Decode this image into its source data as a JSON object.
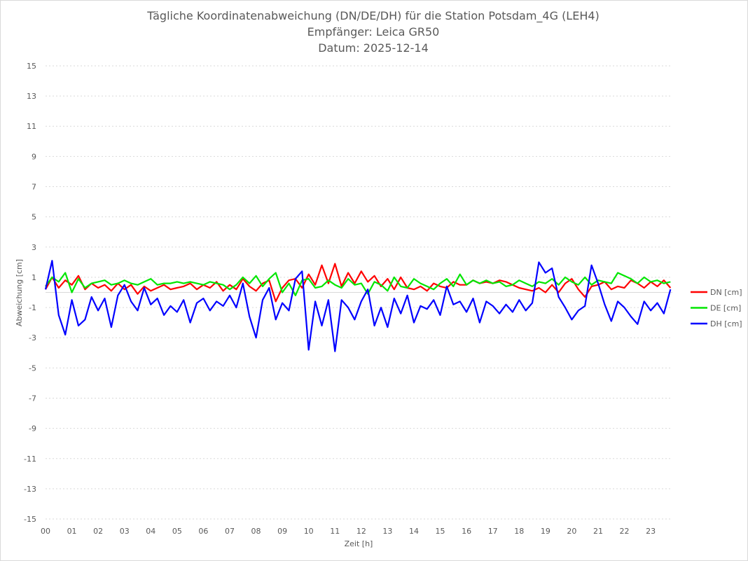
{
  "chart_data": {
    "type": "line",
    "title": [
      "Tägliche Koordinatenabweichung (DN/DE/DH) für die Station Potsdam_4G (LEH4)",
      "Empfänger: Leica GR50",
      "Datum: 2025-12-14"
    ],
    "xlabel": "Zeit [h]",
    "ylabel": "Abweichung [cm]",
    "xlim": [
      0,
      24
    ],
    "ylim": [
      -15,
      15
    ],
    "x_ticks": [
      "00",
      "01",
      "02",
      "03",
      "04",
      "05",
      "06",
      "07",
      "08",
      "09",
      "10",
      "11",
      "12",
      "13",
      "14",
      "15",
      "16",
      "17",
      "18",
      "19",
      "20",
      "21",
      "22",
      "23"
    ],
    "y_ticks": [
      15,
      13,
      11,
      9,
      7,
      5,
      3,
      1,
      -1,
      -3,
      -5,
      -7,
      -9,
      -11,
      -13,
      -15
    ],
    "grid": "horizontal dotted",
    "legend_position": "right",
    "x_step_hours": 0.25,
    "series": [
      {
        "name": "DN [cm]",
        "color": "#ff0000",
        "values": [
          0.2,
          1.0,
          0.3,
          0.8,
          0.5,
          1.1,
          0.2,
          0.6,
          0.3,
          0.5,
          0.1,
          0.6,
          0.2,
          0.5,
          -0.1,
          0.4,
          0.1,
          0.3,
          0.5,
          0.2,
          0.3,
          0.4,
          0.6,
          0.2,
          0.5,
          0.3,
          0.7,
          0.1,
          0.5,
          0.2,
          0.9,
          0.4,
          0.1,
          0.6,
          0.8,
          -0.6,
          0.3,
          0.8,
          0.9,
          0.3,
          1.2,
          0.5,
          1.8,
          0.6,
          1.9,
          0.4,
          1.3,
          0.6,
          1.4,
          0.7,
          1.1,
          0.4,
          0.9,
          0.2,
          1.0,
          0.3,
          0.2,
          0.4,
          0.1,
          0.6,
          0.4,
          0.3,
          0.7,
          0.5,
          0.5,
          0.8,
          0.6,
          0.7,
          0.6,
          0.8,
          0.7,
          0.5,
          0.3,
          0.2,
          0.1,
          0.3,
          0.0,
          0.5,
          0.0,
          0.6,
          0.9,
          0.2,
          -0.3,
          0.4,
          0.5,
          0.7,
          0.2,
          0.4,
          0.3,
          0.8,
          0.6,
          0.3,
          0.7,
          0.4,
          0.8,
          0.3
        ]
      },
      {
        "name": "DE [cm]",
        "color": "#00e600",
        "values": [
          0.4,
          1.0,
          0.7,
          1.3,
          0.0,
          0.9,
          0.3,
          0.6,
          0.7,
          0.8,
          0.5,
          0.6,
          0.8,
          0.6,
          0.5,
          0.7,
          0.9,
          0.5,
          0.6,
          0.6,
          0.7,
          0.6,
          0.7,
          0.6,
          0.5,
          0.7,
          0.6,
          0.5,
          0.2,
          0.5,
          1.0,
          0.6,
          1.1,
          0.4,
          0.9,
          1.3,
          0.0,
          0.6,
          -0.2,
          0.8,
          0.9,
          0.3,
          0.4,
          0.8,
          0.5,
          0.3,
          0.9,
          0.5,
          0.6,
          -0.1,
          0.7,
          0.5,
          0.1,
          1.0,
          0.4,
          0.3,
          0.9,
          0.6,
          0.4,
          0.2,
          0.6,
          0.9,
          0.4,
          1.2,
          0.5,
          0.8,
          0.6,
          0.8,
          0.6,
          0.7,
          0.4,
          0.5,
          0.8,
          0.6,
          0.4,
          0.7,
          0.6,
          0.9,
          0.5,
          1.0,
          0.7,
          0.5,
          1.0,
          0.5,
          0.8,
          0.7,
          0.6,
          1.3,
          1.1,
          0.9,
          0.6,
          1.0,
          0.7,
          0.8,
          0.6,
          0.7
        ]
      },
      {
        "name": "DH [cm]",
        "color": "#0000ff",
        "values": [
          0.2,
          2.1,
          -1.5,
          -2.8,
          -0.5,
          -2.2,
          -1.8,
          -0.3,
          -1.2,
          -0.4,
          -2.3,
          -0.2,
          0.5,
          -0.6,
          -1.2,
          0.3,
          -0.8,
          -0.4,
          -1.5,
          -0.9,
          -1.3,
          -0.5,
          -2.0,
          -0.7,
          -0.4,
          -1.2,
          -0.6,
          -0.9,
          -0.2,
          -1.0,
          0.6,
          -1.6,
          -3.0,
          -0.5,
          0.3,
          -1.8,
          -0.7,
          -1.2,
          0.9,
          1.4,
          -3.8,
          -0.6,
          -2.2,
          -0.5,
          -3.9,
          -0.5,
          -1.0,
          -1.8,
          -0.6,
          0.2,
          -2.2,
          -1.0,
          -2.3,
          -0.4,
          -1.4,
          -0.2,
          -2.0,
          -0.9,
          -1.1,
          -0.5,
          -1.5,
          0.4,
          -0.8,
          -0.6,
          -1.3,
          -0.4,
          -2.0,
          -0.6,
          -0.9,
          -1.4,
          -0.8,
          -1.3,
          -0.5,
          -1.2,
          -0.7,
          2.0,
          1.3,
          1.6,
          -0.3,
          -1.0,
          -1.8,
          -1.2,
          -0.9,
          1.8,
          0.6,
          -0.8,
          -1.9,
          -0.6,
          -1.0,
          -1.6,
          -2.1,
          -0.6,
          -1.2,
          -0.7,
          -1.4,
          0.2
        ]
      }
    ]
  }
}
